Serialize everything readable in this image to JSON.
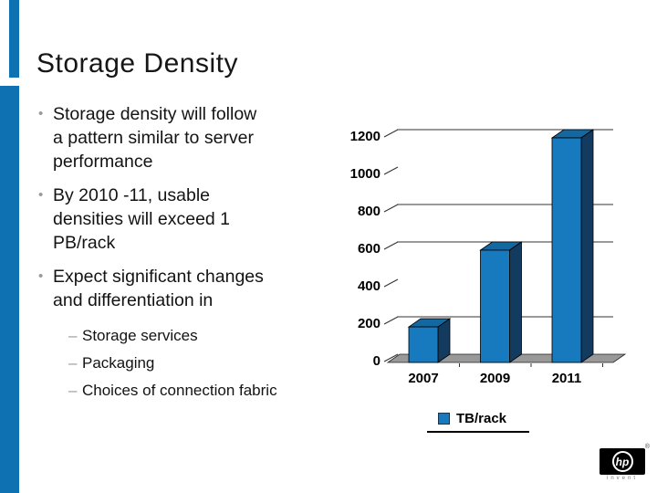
{
  "slide": {
    "title": "Storage Density",
    "bullet_marker": "•",
    "sub_marker": "–",
    "bullets": [
      {
        "text": "Storage density will follow\na pattern similar to server\nperformance"
      },
      {
        "text": "By 2010 -11, usable\ndensities will exceed 1\nPB/rack"
      },
      {
        "text": "Expect significant changes\nand differentiation in"
      }
    ],
    "sub_bullets": [
      "Storage services",
      "Packaging",
      "Choices of connection fabric"
    ]
  },
  "chart_data": {
    "type": "bar",
    "style": "3d-column",
    "title": "",
    "xlabel": "",
    "ylabel": "",
    "categories": [
      "2007",
      "2009",
      "2011"
    ],
    "series": [
      {
        "name": "TB/rack",
        "values": [
          190,
          600,
          1200
        ]
      }
    ],
    "ylim": [
      0,
      1200
    ],
    "yticks": [
      0,
      200,
      400,
      600,
      800,
      1000,
      1200
    ],
    "gridline_values": [
      200,
      600,
      800,
      1200
    ],
    "legend_position": "bottom",
    "bar_color": "#1779be",
    "bar_side_color": "#133a5f",
    "bar_top_color": "#15689f",
    "floor_color": "#999999",
    "axis_color": "#333333"
  },
  "legend": {
    "label": "TB/rack"
  },
  "logo": {
    "brand": "hp",
    "tagline": "invent",
    "registered": "®"
  },
  "colors": {
    "accent_blue": "#0e71b2"
  }
}
